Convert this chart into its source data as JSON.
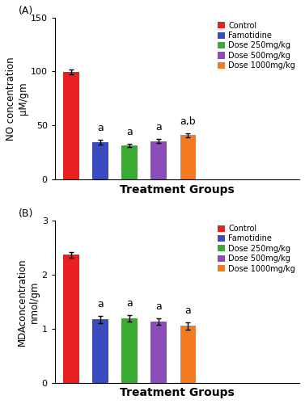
{
  "panel_A": {
    "title_label": "(A)",
    "ylabel": "NO concentration\nμM/gm",
    "xlabel": "Treatment Groups",
    "categories": [
      "Control",
      "Famotidine",
      "Dose 250mg/kg",
      "Dose 500mg/kg",
      "Dose 1000mg/kg"
    ],
    "values": [
      99.5,
      34.5,
      31.5,
      35.5,
      41.0
    ],
    "errors": [
      2.0,
      2.0,
      1.5,
      2.0,
      2.0
    ],
    "colors": [
      "#e82020",
      "#3b4cc0",
      "#3aaa35",
      "#8b4db8",
      "#f47b20"
    ],
    "ylim": [
      0,
      150
    ],
    "yticks": [
      0,
      50,
      100,
      150
    ],
    "annotations": [
      "",
      "a",
      "a",
      "a",
      "a,b"
    ],
    "legend_labels": [
      "Control",
      "Famotidine",
      "Dose 250mg/kg",
      "Dose 500mg/kg",
      "Dose 1000mg/kg"
    ]
  },
  "panel_B": {
    "title_label": "(B)",
    "ylabel": "MDAconcentration\nnmol/gm",
    "xlabel": "Treatment Groups",
    "categories": [
      "Control",
      "Famotidine",
      "Dose 250mg/kg",
      "Dose 500mg/kg",
      "Dose 1000mg/kg"
    ],
    "values": [
      2.37,
      1.17,
      1.19,
      1.13,
      1.05
    ],
    "errors": [
      0.05,
      0.07,
      0.06,
      0.06,
      0.07
    ],
    "colors": [
      "#e82020",
      "#3b4cc0",
      "#3aaa35",
      "#8b4db8",
      "#f47b20"
    ],
    "ylim": [
      0,
      3
    ],
    "yticks": [
      0,
      1,
      2,
      3
    ],
    "annotations": [
      "",
      "a",
      "a",
      "a",
      "a"
    ],
    "legend_labels": [
      "Control",
      "Famotidine",
      "Dose 250mg/kg",
      "Dose 500mg/kg",
      "Dose 1000mg/kg"
    ]
  },
  "background_color": "#ffffff",
  "bar_width": 0.55,
  "annotation_fontsize": 9,
  "legend_fontsize": 7,
  "label_fontsize": 8.5,
  "tick_fontsize": 8,
  "title_fontsize": 9,
  "xlabel_fontsize": 10
}
